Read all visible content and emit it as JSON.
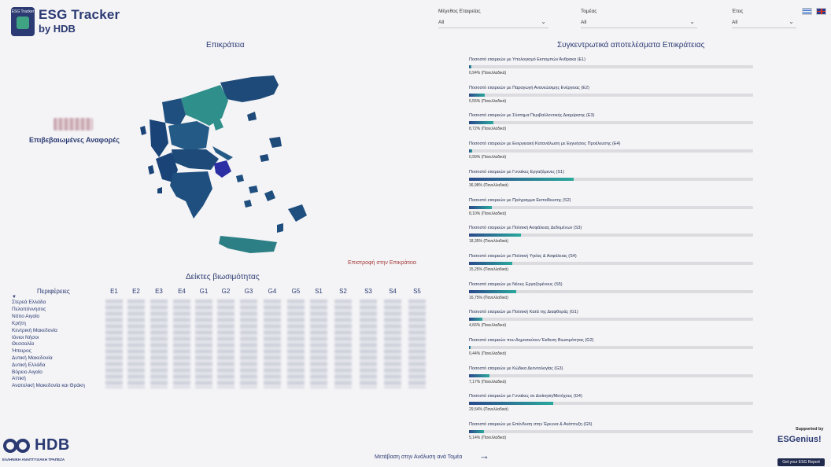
{
  "header": {
    "logo_text": "ESG Tracker",
    "brand_title": "ESG Tracker",
    "brand_sub": "by HDB"
  },
  "filters": [
    {
      "label": "Μέγεθος Εταιρείας",
      "value": "All"
    },
    {
      "label": "Τομέας",
      "value": "All"
    },
    {
      "label": "Έτος",
      "value": "All"
    }
  ],
  "languages": [
    "Greek",
    "English"
  ],
  "map_section": {
    "title": "Επικράτεια",
    "verified_label": "Επιβεβαιωμένες Αναφορές",
    "return_link": "Επιστροφή στην Επικράτεια"
  },
  "indicators_table": {
    "title": "Δείκτες βιωσιμότητας",
    "region_header": "Περιφέρειες",
    "columns": [
      "E1",
      "E2",
      "E3",
      "E4",
      "G1",
      "G2",
      "G3",
      "G4",
      "G5",
      "S1",
      "S2",
      "S3",
      "S4",
      "S5"
    ],
    "regions": [
      "Στερεά Ελλάδα",
      "Πελοπόννησος",
      "Νότιο Αιγαίο",
      "Κρήτη",
      "Κεντρική Μακεδονία",
      "Ιόνιοι Νήσοι",
      "Θεσσαλία",
      "Ήπειρος",
      "Δυτική Μακεδονία",
      "Δυτική Ελλάδα",
      "Βόρειο Αιγαίο",
      "Αττική",
      "Ανατολική Μακεδονία και Θράκη"
    ]
  },
  "aggregate": {
    "title": "Συγκεντρωτικά αποτελέσματα Επικράτειας",
    "kpis": [
      {
        "title": "Ποσοστό εταιρειών με Υπολογισμό Εκπομπών Άνθρακα (E1)",
        "value_label": "0,94% (Πανελλαδικά)",
        "pct": 0.94
      },
      {
        "title": "Ποσοστό εταιρειών με Παραγωγή Ανανεώσιμης Ενέργειας (E2)",
        "value_label": "5,55% (Πανελλαδικά)",
        "pct": 5.55
      },
      {
        "title": "Ποσοστό εταιρειών με Σύστημα Περιβαλλοντικής Διαχείρισης (E3)",
        "value_label": "8,72% (Πανελλαδικά)",
        "pct": 8.72
      },
      {
        "title": "Ποσοστό εταιρειών με Ενεργειακή Κατανάλωση με Εγγυήσεις Προέλευσης (E4)",
        "value_label": "0,99% (Πανελλαδικά)",
        "pct": 0.99
      },
      {
        "title": "Ποσοστό εταιρειών με Γυναίκες Εργαζόμενες (S1)",
        "value_label": "36,98% (Πανελλαδικά)",
        "pct": 36.98
      },
      {
        "title": "Ποσοστό εταιρειών με Πρόγραμμα Εκπαίδευσης (S2)",
        "value_label": "8,10% (Πανελλαδικά)",
        "pct": 8.1
      },
      {
        "title": "Ποσοστό εταιρειών με Πολιτική Ασφάλειας Δεδομένων (S3)",
        "value_label": "18,35% (Πανελλαδικά)",
        "pct": 18.35
      },
      {
        "title": "Ποσοστό εταιρειών με Πολιτική Υγείας & Ασφάλειας (S4)",
        "value_label": "15,25% (Πανελλαδικά)",
        "pct": 15.25
      },
      {
        "title": "Ποσοστό εταιρειών με Νέους Εργαζομένους (S5)",
        "value_label": "16,75% (Πανελλαδικά)",
        "pct": 16.75
      },
      {
        "title": "Ποσοστό εταιρειών με Πολιτική Κατά της Διαφθοράς (G1)",
        "value_label": "4,66% (Πανελλαδικά)",
        "pct": 4.66
      },
      {
        "title": "Ποσοστό εταιρειών που Δημοσιεύουν Έκθεση Βιωσιμότητας (G2)",
        "value_label": "0,44% (Πανελλαδικά)",
        "pct": 0.44
      },
      {
        "title": "Ποσοστό εταιρειών με Κώδικα Δεοντολογίας (G3)",
        "value_label": "7,17% (Πανελλαδικά)",
        "pct": 7.17
      },
      {
        "title": "Ποσοστό εταιρειών με Γυναίκες σε Διοίκηση/Μετόχους (G4)",
        "value_label": "29,54% (Πανελλαδικά)",
        "pct": 29.54
      },
      {
        "title": "Ποσοστό εταιρειών με Επένδυση στην Έρευνα & Ανάπτυξη (G5)",
        "value_label": "5,14% (Πανελλαδικά)",
        "pct": 5.14
      }
    ]
  },
  "footer": {
    "hdb_logo": "HDB",
    "hdb_sub": "ΕΛΛΗΝΙΚΗ ΑΝΑΠΤΥΞΙΑΚΗ ΤΡΑΠΕΖΑ",
    "nav_link": "Μετάβαση στην Ανάλυση ανά Τομέα",
    "supported_by": "Supported by",
    "esg_logo": "ESGenius!",
    "esg_report": "Get your ESG Report"
  }
}
